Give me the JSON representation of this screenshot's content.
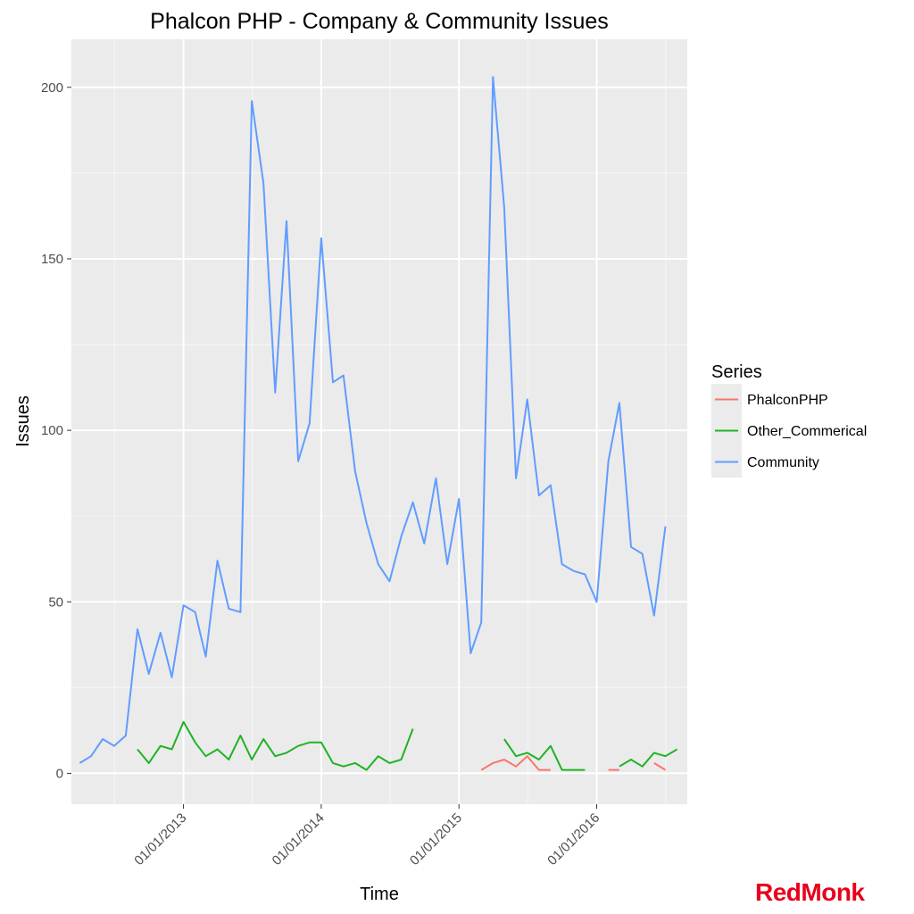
{
  "chart_data": {
    "type": "line",
    "title": "Phalcon PHP - Company & Community Issues",
    "xlabel": "Time",
    "ylabel": "Issues",
    "x_ticks": [
      "01/01/2013",
      "01/01/2014",
      "01/01/2015",
      "01/01/2016"
    ],
    "y_ticks": [
      0,
      50,
      100,
      150,
      200
    ],
    "ylim": [
      -9,
      214
    ],
    "xlim": [
      "2012-03-10",
      "2016-08-28"
    ],
    "grid": true,
    "legend": {
      "title": "Series",
      "placement": "right"
    },
    "series": [
      {
        "name": "PhalconPHP",
        "color": "#f8766d",
        "points": [
          [
            "2015-03-01",
            1
          ],
          [
            "2015-04-01",
            3
          ],
          [
            "2015-05-01",
            4
          ],
          [
            "2015-06-01",
            2
          ],
          [
            "2015-07-01",
            5
          ],
          [
            "2015-08-01",
            1
          ],
          [
            "2015-09-01",
            1
          ],
          null,
          [
            "2016-02-01",
            1
          ],
          [
            "2016-03-01",
            1
          ],
          null,
          [
            "2016-06-01",
            3
          ],
          [
            "2016-07-01",
            1
          ]
        ]
      },
      {
        "name": "Other_Commerical",
        "color": "#1fb324",
        "points": [
          [
            "2012-09-01",
            7
          ],
          [
            "2012-10-01",
            3
          ],
          [
            "2012-11-01",
            8
          ],
          [
            "2012-12-01",
            7
          ],
          [
            "2013-01-01",
            15
          ],
          [
            "2013-02-01",
            9
          ],
          [
            "2013-03-01",
            5
          ],
          [
            "2013-04-01",
            7
          ],
          [
            "2013-05-01",
            4
          ],
          [
            "2013-06-01",
            11
          ],
          [
            "2013-07-01",
            4
          ],
          [
            "2013-08-01",
            10
          ],
          [
            "2013-09-01",
            5
          ],
          [
            "2013-10-01",
            6
          ],
          [
            "2013-11-01",
            8
          ],
          [
            "2013-12-01",
            9
          ],
          [
            "2014-01-01",
            9
          ],
          [
            "2014-02-01",
            3
          ],
          [
            "2014-03-01",
            2
          ],
          [
            "2014-04-01",
            3
          ],
          [
            "2014-05-01",
            1
          ],
          [
            "2014-06-01",
            5
          ],
          [
            "2014-07-01",
            3
          ],
          [
            "2014-08-01",
            4
          ],
          [
            "2014-09-01",
            13
          ],
          null,
          [
            "2015-05-01",
            10
          ],
          [
            "2015-06-01",
            5
          ],
          [
            "2015-07-01",
            6
          ],
          [
            "2015-08-01",
            4
          ],
          [
            "2015-09-01",
            8
          ],
          [
            "2015-10-01",
            1
          ],
          [
            "2015-11-01",
            1
          ],
          [
            "2015-12-01",
            1
          ],
          null,
          [
            "2016-03-01",
            2
          ],
          [
            "2016-04-01",
            4
          ],
          [
            "2016-05-01",
            2
          ],
          [
            "2016-06-01",
            6
          ],
          [
            "2016-07-01",
            5
          ],
          [
            "2016-08-01",
            7
          ]
        ]
      },
      {
        "name": "Community",
        "color": "#619cff",
        "points": [
          [
            "2012-04-01",
            3
          ],
          [
            "2012-05-01",
            5
          ],
          [
            "2012-06-01",
            10
          ],
          [
            "2012-07-01",
            8
          ],
          [
            "2012-08-01",
            11
          ],
          [
            "2012-09-01",
            42
          ],
          [
            "2012-10-01",
            29
          ],
          [
            "2012-11-01",
            41
          ],
          [
            "2012-12-01",
            28
          ],
          [
            "2013-01-01",
            49
          ],
          [
            "2013-02-01",
            47
          ],
          [
            "2013-03-01",
            34
          ],
          [
            "2013-04-01",
            62
          ],
          [
            "2013-05-01",
            48
          ],
          [
            "2013-06-01",
            47
          ],
          [
            "2013-07-01",
            196
          ],
          [
            "2013-08-01",
            172
          ],
          [
            "2013-09-01",
            111
          ],
          [
            "2013-10-01",
            161
          ],
          [
            "2013-11-01",
            91
          ],
          [
            "2013-12-01",
            102
          ],
          [
            "2014-01-01",
            156
          ],
          [
            "2014-02-01",
            114
          ],
          [
            "2014-03-01",
            116
          ],
          [
            "2014-04-01",
            88
          ],
          [
            "2014-05-01",
            73
          ],
          [
            "2014-06-01",
            61
          ],
          [
            "2014-07-01",
            56
          ],
          [
            "2014-08-01",
            69
          ],
          [
            "2014-09-01",
            79
          ],
          [
            "2014-10-01",
            67
          ],
          [
            "2014-11-01",
            86
          ],
          [
            "2014-12-01",
            61
          ],
          [
            "2015-01-01",
            80
          ],
          [
            "2015-02-01",
            35
          ],
          [
            "2015-03-01",
            44
          ],
          [
            "2015-04-01",
            203
          ],
          [
            "2015-05-01",
            165
          ],
          [
            "2015-06-01",
            86
          ],
          [
            "2015-07-01",
            109
          ],
          [
            "2015-08-01",
            81
          ],
          [
            "2015-09-01",
            84
          ],
          [
            "2015-10-01",
            61
          ],
          [
            "2015-11-01",
            59
          ],
          [
            "2015-12-01",
            58
          ],
          [
            "2016-01-01",
            50
          ],
          [
            "2016-02-01",
            91
          ],
          [
            "2016-03-01",
            108
          ],
          [
            "2016-04-01",
            66
          ],
          [
            "2016-05-01",
            64
          ],
          [
            "2016-06-01",
            46
          ],
          [
            "2016-07-01",
            72
          ]
        ]
      }
    ]
  },
  "branding": {
    "logo_text": "RedMonk",
    "logo_color": "#e8001c"
  }
}
